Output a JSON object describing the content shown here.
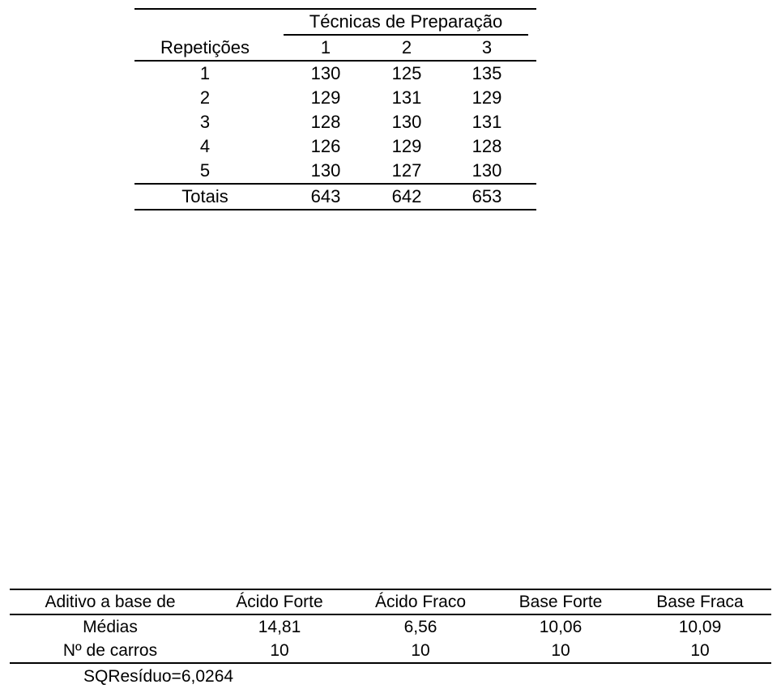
{
  "table1": {
    "group_header": "Técnicas de Preparação",
    "row_header": "Repetições",
    "columns": [
      "1",
      "2",
      "3"
    ],
    "rows": [
      {
        "label": "1",
        "values": [
          "130",
          "125",
          "135"
        ]
      },
      {
        "label": "2",
        "values": [
          "129",
          "131",
          "129"
        ]
      },
      {
        "label": "3",
        "values": [
          "128",
          "130",
          "131"
        ]
      },
      {
        "label": "4",
        "values": [
          "126",
          "129",
          "128"
        ]
      },
      {
        "label": "5",
        "values": [
          "130",
          "127",
          "130"
        ]
      }
    ],
    "totals": {
      "label": "Totais",
      "values": [
        "643",
        "642",
        "653"
      ]
    }
  },
  "table2": {
    "header": [
      "Aditivo a base de",
      "Ácido Forte",
      "Ácido Fraco",
      "Base Forte",
      "Base Fraca"
    ],
    "rows": [
      {
        "label": "Médias",
        "values": [
          "14,81",
          "6,56",
          "10,06",
          "10,09"
        ]
      },
      {
        "label": "Nº de carros",
        "values": [
          "10",
          "10",
          "10",
          "10"
        ]
      }
    ]
  },
  "note": "SQResíduo=6,0264"
}
